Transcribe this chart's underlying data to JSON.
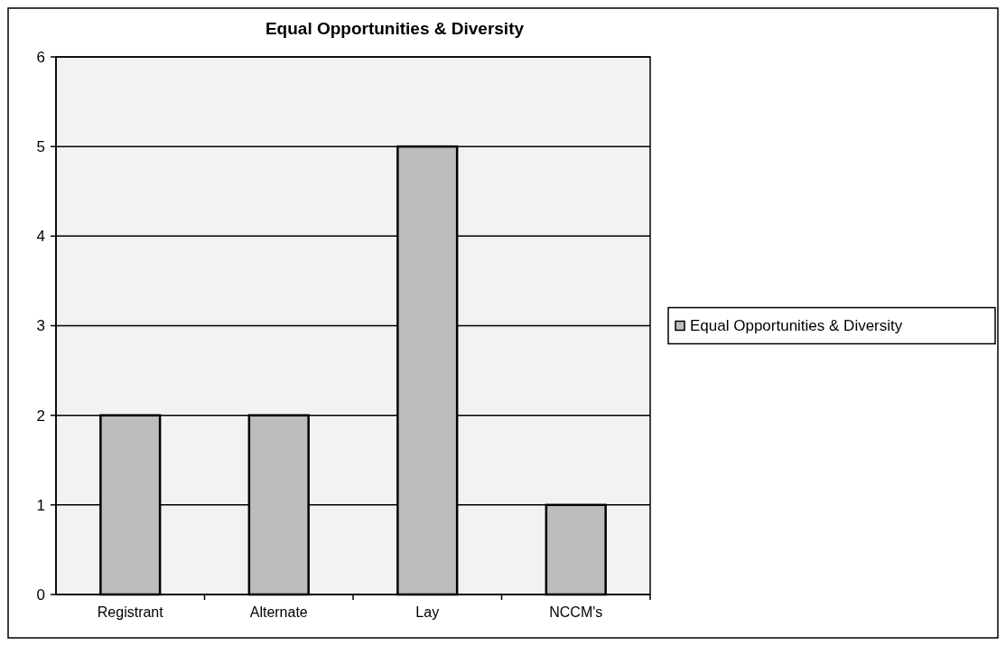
{
  "chart_data": {
    "type": "bar",
    "title": "Equal Opportunities & Diversity",
    "categories": [
      "Registrant",
      "Alternate",
      "Lay",
      "NCCM's"
    ],
    "series": [
      {
        "name": "Equal Opportunities & Diversity",
        "color": "#bdbdbd",
        "values": [
          2,
          2,
          5,
          1
        ]
      }
    ],
    "ylim": [
      0,
      6
    ],
    "yticks": [
      0,
      1,
      2,
      3,
      4,
      5,
      6
    ],
    "grid": "y",
    "legend": "right"
  }
}
